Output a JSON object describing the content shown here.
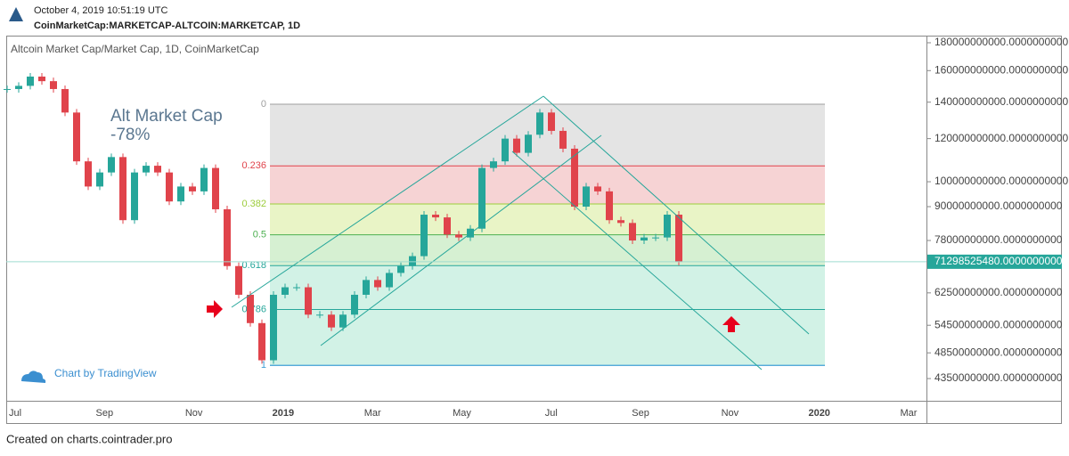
{
  "header": {
    "date": "October 4, 2019 10:51:19 UTC",
    "symbol": "CoinMarketCap:MARKETCAP-ALTCOIN:MARKETCAP, 1D"
  },
  "footer": "Created on charts.cointrader.pro",
  "chart_data": {
    "type": "candlestick",
    "title": "Altcoin Market Cap/Market Cap, 1D, CoinMarketCap",
    "annotation": [
      "Alt Market Cap",
      "-78%"
    ],
    "watermark": "Chart by TradingView",
    "log_scale": true,
    "up_color": "#26a69a",
    "down_color": "#e0434b",
    "categories": [
      null,
      null,
      null,
      null,
      null,
      null,
      null,
      null,
      null,
      null,
      null,
      null,
      null,
      null,
      null,
      null,
      null,
      null,
      null,
      null,
      null,
      null,
      null,
      null,
      null,
      null,
      null,
      null,
      null,
      null,
      null,
      null,
      null,
      null,
      null,
      null,
      null,
      null,
      null,
      null,
      null,
      null,
      null,
      null,
      null,
      null,
      null,
      null,
      null,
      null,
      null,
      null,
      null,
      null,
      null,
      null,
      null,
      null,
      null
    ],
    "values": [
      148000000000,
      150000000000,
      156000000000,
      153000000000,
      148000000000,
      134000000000,
      109000000000,
      98000000000,
      104000000000,
      111000000000,
      85000000000,
      104000000000,
      107000000000,
      104000000000,
      92000000000,
      98000000000,
      96000000000,
      106000000000,
      89000000000,
      70000000000,
      62000000000,
      55000000000,
      47000000000,
      62000000000,
      64000000000,
      64000000000,
      57000000000,
      57000000000,
      54000000000,
      57000000000,
      62000000000,
      66000000000,
      64000000000,
      68000000000,
      70000000000,
      73000000000,
      87000000000,
      86000000000,
      80000000000,
      79000000000,
      82000000000,
      106000000000,
      109000000000,
      120000000000,
      113000000000,
      122000000000,
      134000000000,
      124000000000,
      115000000000,
      90000000000,
      98000000000,
      96000000000,
      85000000000,
      84000000000,
      78000000000,
      79000000000,
      79000000000,
      87000000000,
      71298525480
    ],
    "xtick_labels": [
      "Jul",
      "Sep",
      "Nov",
      "2019",
      "Mar",
      "May",
      "Jul",
      "Sep",
      "Nov",
      "2020",
      "Mar"
    ],
    "ylim": [
      39600000000,
      185500000000
    ],
    "yticks": [
      {
        "value": 180000000000,
        "label": "180000000000.0000000000"
      },
      {
        "value": 160000000000,
        "label": "160000000000.0000000000"
      },
      {
        "value": 140000000000,
        "label": "140000000000.0000000000"
      },
      {
        "value": 120000000000,
        "label": "120000000000.0000000000"
      },
      {
        "value": 100000000000,
        "label": "100000000000.0000000000"
      },
      {
        "value": 90000000000,
        "label": "90000000000.0000000000"
      },
      {
        "value": 78000000000,
        "label": "78000000000.0000000000"
      },
      {
        "value": 62500000000,
        "label": "62500000000.0000000000"
      },
      {
        "value": 54500000000,
        "label": "54500000000.0000000000"
      },
      {
        "value": 48500000000,
        "label": "48500000000.0000000000"
      },
      {
        "value": 43500000000,
        "label": "43500000000.0000000000"
      }
    ],
    "last_price": {
      "value": 71298525480,
      "label": "71298525480.0000000000"
    },
    "fib": {
      "high": 138800000000,
      "low": 46000000000,
      "levels": [
        0,
        0.236,
        0.382,
        0.5,
        0.618,
        0.786,
        1
      ],
      "colors": [
        "#9e9e9e",
        "#e0434b",
        "#9ccc3a",
        "#4caf50",
        "#26a69a",
        "#26a69a",
        "#3f9fd6"
      ],
      "fills": [
        "#e4e4e4",
        "#f6d3d4",
        "#e9f4c6",
        "#d6f0d2",
        "#d2f2e6",
        "#d2f2e6",
        "#d3e8f5"
      ]
    }
  }
}
